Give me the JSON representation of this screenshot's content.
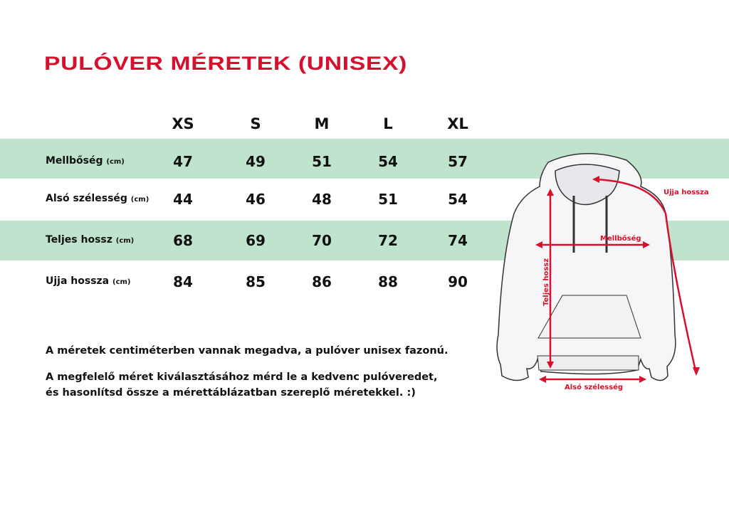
{
  "title": "PULÓVER MÉRETEK (UNISEX)",
  "sizes": [
    "XS",
    "S",
    "M",
    "L",
    "XL"
  ],
  "unit": "(cm)",
  "rows": [
    {
      "label": "Mellbőség",
      "values": [
        "47",
        "49",
        "51",
        "54",
        "57"
      ]
    },
    {
      "label": "Alsó szélesség",
      "values": [
        "44",
        "46",
        "48",
        "51",
        "54"
      ]
    },
    {
      "label": "Teljes hossz",
      "values": [
        "68",
        "69",
        "70",
        "72",
        "74"
      ]
    },
    {
      "label": "Ujja hossza",
      "values": [
        "84",
        "85",
        "86",
        "88",
        "90"
      ]
    }
  ],
  "notes": [
    "A méretek centiméterben vannak megadva, a pulóver unisex fazonú.",
    "A megfelelő méret kiválasztásához mérd le a kedvenc pulóveredet,",
    "és hasonlítsd össze a mérettáblázatban szereplő méretekkel. :)"
  ],
  "diagram": {
    "sleeve": "Ujja hossza",
    "chest": "Mellbőség",
    "length": "Teljes hossz",
    "bottom": "Alsó szélesség"
  },
  "colors": {
    "accent": "#d7102e",
    "band": "#bfe3cc"
  }
}
